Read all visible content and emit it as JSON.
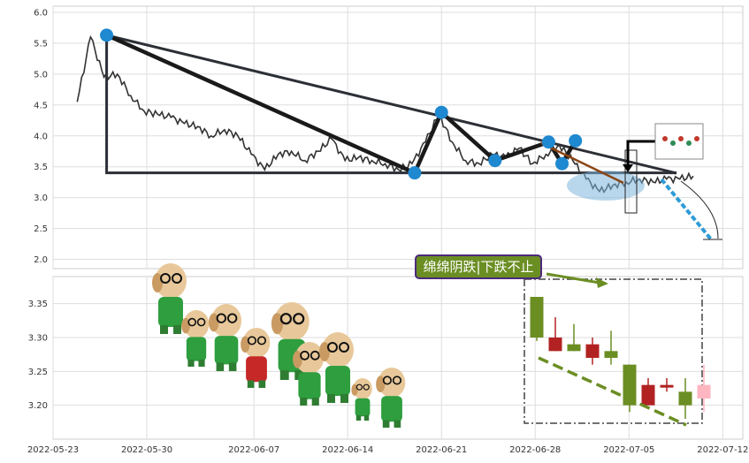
{
  "chart_data": [
    {
      "type": "line",
      "panel": "upper",
      "title": "",
      "xlabel": "",
      "ylabel": "",
      "ylim": [
        1.85,
        6.1
      ],
      "yticks": [
        "2.0",
        "2.5",
        "3.0",
        "3.5",
        "4.0",
        "4.5",
        "5.0",
        "5.5",
        "6.0"
      ],
      "grid": true,
      "series": [
        {
          "x": [
            "2022-05-25",
            "2022-05-26",
            "2022-05-27",
            "2022-05-28",
            "2022-05-29",
            "2022-05-30",
            "2022-05-31",
            "2022-06-01",
            "2022-06-02",
            "2022-06-03",
            "2022-06-04",
            "2022-06-05",
            "2022-06-06",
            "2022-06-07",
            "2022-06-08",
            "2022-06-09",
            "2022-06-10",
            "2022-06-11",
            "2022-06-12",
            "2022-06-13",
            "2022-06-14",
            "2022-06-15",
            "2022-06-16",
            "2022-06-17",
            "2022-06-18",
            "2022-06-19",
            "2022-06-20",
            "2022-06-21",
            "2022-06-22",
            "2022-06-23",
            "2022-06-24",
            "2022-06-25",
            "2022-06-26",
            "2022-06-27",
            "2022-06-28",
            "2022-06-29",
            "2022-06-30",
            "2022-07-01",
            "2022-07-02",
            "2022-07-03",
            "2022-07-04",
            "2022-07-05",
            "2022-07-06",
            "2022-07-07",
            "2022-07-08",
            "2022-07-09",
            "2022-07-10"
          ],
          "values": [
            4.55,
            5.6,
            4.95,
            5.0,
            4.65,
            4.4,
            4.35,
            4.3,
            4.2,
            4.15,
            4.0,
            4.1,
            4.0,
            3.7,
            3.45,
            3.7,
            3.75,
            3.6,
            3.75,
            3.95,
            3.6,
            3.65,
            3.6,
            3.55,
            3.45,
            3.55,
            3.9,
            4.35,
            3.9,
            3.6,
            3.55,
            3.7,
            3.65,
            3.8,
            3.55,
            3.7,
            3.85,
            3.6,
            3.3,
            3.1,
            3.2,
            3.25,
            3.3,
            3.25,
            3.3,
            3.3,
            3.35
          ]
        }
      ],
      "pivots": [
        {
          "x": "2022-05-27",
          "y": 5.63
        },
        {
          "x": "2022-06-19",
          "y": 3.4
        },
        {
          "x": "2022-06-21",
          "y": 4.38
        },
        {
          "x": "2022-06-25",
          "y": 3.6
        },
        {
          "x": "2022-06-29",
          "y": 3.9
        },
        {
          "x": "2022-06-30",
          "y": 3.55
        },
        {
          "x": "2022-07-01",
          "y": 3.92
        }
      ]
    },
    {
      "type": "candlestick",
      "panel": "lower",
      "title": "",
      "ylim": [
        3.15,
        3.39
      ],
      "yticks": [
        "3.20",
        "3.25",
        "3.30",
        "3.35"
      ],
      "xticks": [
        "2022-05-23",
        "2022-05-30",
        "2022-06-07",
        "2022-06-14",
        "2022-06-21",
        "2022-06-28",
        "2022-07-05",
        "2022-07-12"
      ],
      "grid": true,
      "candles": [
        {
          "x": "2022-07-01",
          "open": 3.3,
          "close": 3.36,
          "low": 3.295,
          "high": 3.36,
          "color": "#6b8e23"
        },
        {
          "x": "2022-07-02",
          "open": 3.28,
          "close": 3.3,
          "low": 3.28,
          "high": 3.33,
          "color": "#b22222"
        },
        {
          "x": "2022-07-03",
          "open": 3.28,
          "close": 3.29,
          "low": 3.28,
          "high": 3.32,
          "color": "#6b8e23"
        },
        {
          "x": "2022-07-04",
          "open": 3.27,
          "close": 3.29,
          "low": 3.26,
          "high": 3.3,
          "color": "#b22222"
        },
        {
          "x": "2022-07-05",
          "open": 3.27,
          "close": 3.28,
          "low": 3.26,
          "high": 3.31,
          "color": "#6b8e23"
        },
        {
          "x": "2022-07-06",
          "open": 3.26,
          "close": 3.2,
          "low": 3.19,
          "high": 3.26,
          "color": "#6b8e23"
        },
        {
          "x": "2022-07-07",
          "open": 3.2,
          "close": 3.23,
          "low": 3.2,
          "high": 3.24,
          "color": "#b22222"
        },
        {
          "x": "2022-07-08",
          "open": 3.23,
          "close": 3.23,
          "low": 3.22,
          "high": 3.24,
          "color": "#b22222"
        },
        {
          "x": "2022-07-09",
          "open": 3.22,
          "close": 3.2,
          "low": 3.18,
          "high": 3.24,
          "color": "#6b8e23"
        },
        {
          "x": "2022-07-10",
          "open": 3.21,
          "close": 3.23,
          "low": 3.19,
          "high": 3.26,
          "color": "#ffb6c1"
        }
      ],
      "annotations": [
        {
          "text": "绵绵阴跌|下跌不止"
        }
      ]
    }
  ],
  "colors": {
    "line": "#333333",
    "pivot": "#1e88d0",
    "trend": "#2c2f36",
    "olive": "#6b8e23",
    "red": "#b22222",
    "pink": "#ffb6c1",
    "highlight": "#7fb6dd"
  }
}
